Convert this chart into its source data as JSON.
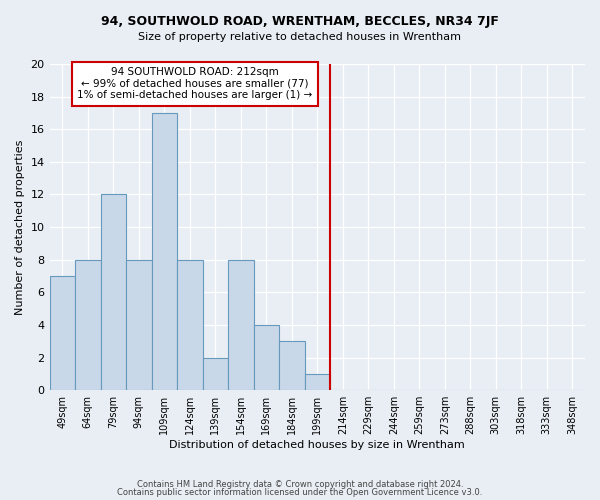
{
  "title": "94, SOUTHWOLD ROAD, WRENTHAM, BECCLES, NR34 7JF",
  "subtitle": "Size of property relative to detached houses in Wrentham",
  "xlabel": "Distribution of detached houses by size in Wrentham",
  "ylabel": "Number of detached properties",
  "footer_line1": "Contains HM Land Registry data © Crown copyright and database right 2024.",
  "footer_line2": "Contains public sector information licensed under the Open Government Licence v3.0.",
  "bin_labels": [
    "49sqm",
    "64sqm",
    "79sqm",
    "94sqm",
    "109sqm",
    "124sqm",
    "139sqm",
    "154sqm",
    "169sqm",
    "184sqm",
    "199sqm",
    "214sqm",
    "229sqm",
    "244sqm",
    "259sqm",
    "273sqm",
    "288sqm",
    "303sqm",
    "318sqm",
    "333sqm",
    "348sqm"
  ],
  "bar_values": [
    7,
    8,
    12,
    8,
    17,
    8,
    2,
    8,
    4,
    3,
    1,
    0,
    0,
    0,
    0,
    0,
    0,
    0,
    0,
    0,
    0
  ],
  "bar_color": "#c8d8e8",
  "bar_edge_color": "#6699bb",
  "ylim": [
    0,
    20
  ],
  "yticks": [
    0,
    2,
    4,
    6,
    8,
    10,
    12,
    14,
    16,
    18,
    20
  ],
  "vline_x": 10.5,
  "vline_color": "#cc0000",
  "annotation_title": "94 SOUTHWOLD ROAD: 212sqm",
  "annotation_line1": "← 99% of detached houses are smaller (77)",
  "annotation_line2": "1% of semi-detached houses are larger (1) →",
  "annotation_box_color": "#ffffff",
  "annotation_border_color": "#cc0000",
  "background_color": "#e8eef4"
}
